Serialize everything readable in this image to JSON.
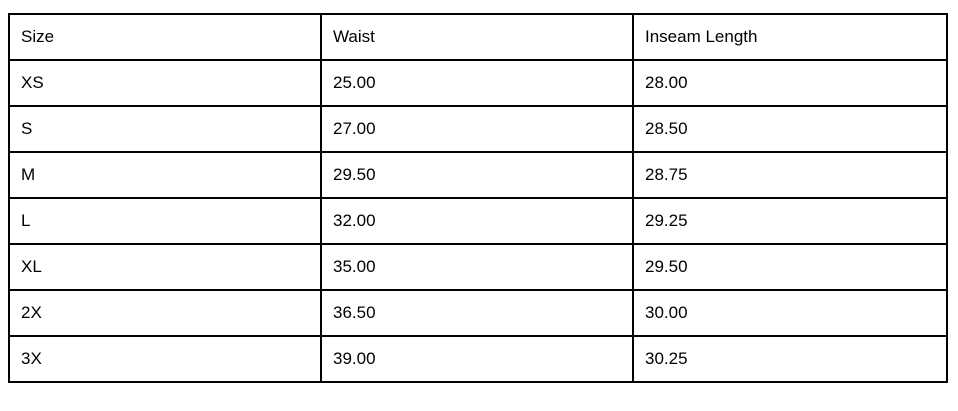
{
  "table": {
    "headers": [
      "Size",
      "Waist",
      "Inseam Length"
    ],
    "rows": [
      [
        "XS",
        "25.00",
        "28.00"
      ],
      [
        "S",
        "27.00",
        "28.50"
      ],
      [
        "M",
        "29.50",
        "28.75"
      ],
      [
        "L",
        "32.00",
        "29.25"
      ],
      [
        "XL",
        "35.00",
        "29.50"
      ],
      [
        "2X",
        "36.50",
        "30.00"
      ],
      [
        "3X",
        "39.00",
        "30.25"
      ]
    ]
  }
}
